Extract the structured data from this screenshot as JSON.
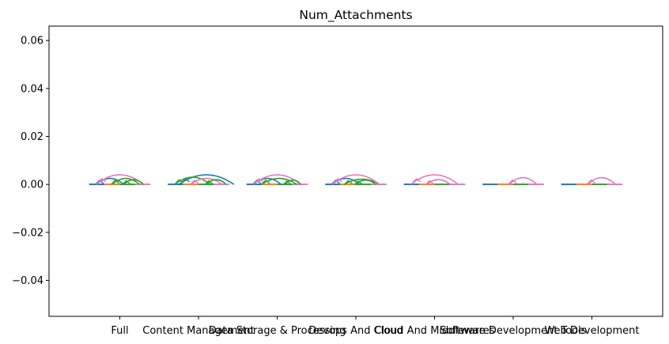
{
  "chart_data": {
    "type": "line",
    "title": "Num_Attachments",
    "xlabel": "",
    "ylabel": "",
    "ylim": [
      -0.055,
      0.066
    ],
    "yticks": [
      -0.04,
      -0.02,
      0.0,
      0.02,
      0.04,
      0.06
    ],
    "ytick_labels": [
      "−0.04",
      "−0.02",
      "0.00",
      "0.02",
      "0.04",
      "0.06"
    ],
    "categories": [
      "Full",
      "Content Management",
      "Data Storage & Processing",
      "Devops And Cloud",
      "Cloud And Middlewares",
      "Software Development Tools",
      "Web Development"
    ],
    "series_colors": [
      "#1f77b4",
      "#ff7f0e",
      "#2ca02c",
      "#e377c2"
    ],
    "groups": [
      {
        "category": "Full",
        "baseline": 0.0,
        "arcs": [
          {
            "color": "#1f77b4",
            "from": -0.3,
            "to": 0.05,
            "height": 0.0025
          },
          {
            "color": "#2ca02c",
            "from": -0.1,
            "to": 0.25,
            "height": 0.0025
          },
          {
            "color": "#e377c2",
            "from": -0.3,
            "to": 0.3,
            "height": 0.004
          },
          {
            "color": "#2ca02c",
            "from": 0.05,
            "to": 0.3,
            "height": 0.002
          }
        ]
      },
      {
        "category": "Content Management",
        "baseline": 0.0,
        "arcs": [
          {
            "color": "#1f77b4",
            "from": -0.25,
            "to": 0.45,
            "height": 0.004
          },
          {
            "color": "#2ca02c",
            "from": -0.3,
            "to": 0.15,
            "height": 0.003
          },
          {
            "color": "#e377c2",
            "from": -0.1,
            "to": 0.3,
            "height": 0.0025
          },
          {
            "color": "#2ca02c",
            "from": 0.1,
            "to": 0.35,
            "height": 0.002
          }
        ]
      },
      {
        "category": "Data Storage & Processing",
        "baseline": 0.0,
        "arcs": [
          {
            "color": "#1f77b4",
            "from": -0.3,
            "to": 0.05,
            "height": 0.0025
          },
          {
            "color": "#2ca02c",
            "from": -0.2,
            "to": 0.25,
            "height": 0.0025
          },
          {
            "color": "#e377c2",
            "from": -0.3,
            "to": 0.3,
            "height": 0.004
          },
          {
            "color": "#2ca02c",
            "from": 0.1,
            "to": 0.3,
            "height": 0.0018
          }
        ]
      },
      {
        "category": "Devops And Cloud",
        "baseline": 0.0,
        "arcs": [
          {
            "color": "#1f77b4",
            "from": -0.3,
            "to": 0.05,
            "height": 0.0025
          },
          {
            "color": "#2ca02c",
            "from": -0.15,
            "to": 0.3,
            "height": 0.0022
          },
          {
            "color": "#e377c2",
            "from": -0.3,
            "to": 0.3,
            "height": 0.004
          },
          {
            "color": "#2ca02c",
            "from": 0.0,
            "to": 0.25,
            "height": 0.0018
          }
        ]
      },
      {
        "category": "Cloud And Middlewares",
        "baseline": 0.0,
        "arcs": [
          {
            "color": "#e377c2",
            "from": -0.3,
            "to": 0.3,
            "height": 0.004
          },
          {
            "color": "#e377c2",
            "from": -0.1,
            "to": 0.2,
            "height": 0.002
          }
        ]
      },
      {
        "category": "Software Development Tools",
        "baseline": 0.0,
        "arcs": [
          {
            "color": "#e377c2",
            "from": -0.05,
            "to": 0.3,
            "height": 0.0028
          }
        ]
      },
      {
        "category": "Web Development",
        "baseline": 0.0,
        "arcs": [
          {
            "color": "#e377c2",
            "from": -0.05,
            "to": 0.3,
            "height": 0.0028
          }
        ]
      }
    ],
    "grid": false,
    "legend": "none"
  }
}
